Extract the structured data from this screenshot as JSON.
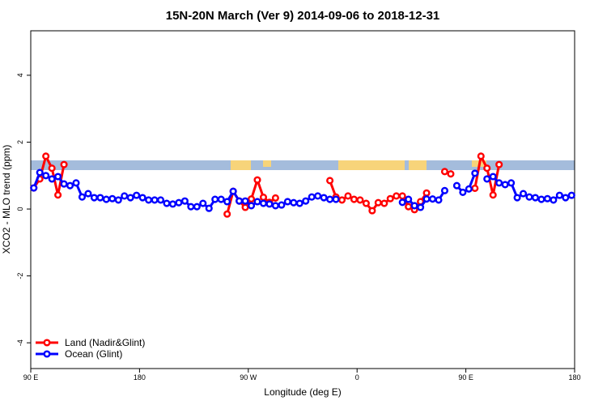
{
  "chart_data": {
    "type": "line",
    "title": "15N-20N March (Ver 9)   2014-09-06 to 2018-12-31",
    "xlabel": "Longitude (deg E)",
    "ylabel": "XCO2 - MLO trend (ppm)",
    "xlim": [
      90,
      540
    ],
    "ylim": [
      -4.77,
      5.33
    ],
    "xticks": [
      {
        "value": 90,
        "label": "90 E"
      },
      180,
      {
        "value": 270,
        "label": "90 W"
      },
      {
        "value": 360,
        "label": "0"
      },
      {
        "value": 450,
        "label": "90 E"
      },
      {
        "value": 540,
        "label": "180"
      }
    ],
    "yticks": [
      -4,
      -2,
      0,
      2,
      4
    ],
    "legend": "bottom-left",
    "x": [
      92.5,
      97.5,
      102.5,
      107.5,
      112.5,
      117.5,
      122.5,
      127.5,
      132.5,
      137.5,
      142.5,
      147.5,
      152.5,
      157.5,
      162.5,
      167.5,
      172.5,
      177.5,
      182.5,
      187.5,
      192.5,
      197.5,
      202.5,
      207.5,
      212.5,
      217.5,
      222.5,
      227.5,
      232.5,
      237.5,
      242.5,
      247.5,
      252.5,
      257.5,
      262.5,
      267.5,
      272.5,
      277.5,
      282.5,
      287.5,
      292.5,
      297.5,
      302.5,
      307.5,
      312.5,
      317.5,
      322.5,
      327.5,
      332.5,
      337.5,
      342.5,
      347.5,
      352.5,
      357.5,
      362.5,
      367.5,
      372.5,
      377.5,
      382.5,
      387.5,
      392.5,
      397.5,
      402.5,
      407.5,
      412.5,
      417.5,
      422.5,
      427.5,
      432.5,
      437.5,
      442.5,
      447.5,
      452.5,
      457.5,
      462.5,
      467.5,
      472.5,
      477.5,
      482.5,
      487.5,
      492.5,
      497.5,
      502.5,
      507.5,
      512.5,
      517.5,
      522.5,
      527.5,
      532.5,
      537.5
    ],
    "series": [
      {
        "name": "Land (Nadir&Glint)",
        "color": "#ff0000",
        "values": [
          0.63,
          0.9,
          1.58,
          1.22,
          0.42,
          1.33,
          null,
          null,
          null,
          null,
          null,
          null,
          null,
          null,
          null,
          null,
          null,
          null,
          null,
          null,
          null,
          null,
          null,
          null,
          null,
          null,
          null,
          null,
          null,
          null,
          null,
          null,
          -0.15,
          0.53,
          0.24,
          0.05,
          0.3,
          0.87,
          0.35,
          0.2,
          0.33,
          null,
          null,
          null,
          null,
          null,
          null,
          null,
          null,
          0.85,
          0.36,
          0.27,
          0.39,
          0.29,
          0.27,
          0.17,
          -0.05,
          0.19,
          0.17,
          0.31,
          0.39,
          0.39,
          0.07,
          -0.02,
          0.22,
          0.48,
          null,
          null,
          1.12,
          1.05,
          null,
          null,
          null,
          0.62,
          1.58,
          1.22,
          0.42,
          1.33,
          null,
          null,
          null,
          null,
          null,
          null,
          null,
          null,
          null,
          null,
          null,
          null
        ]
      },
      {
        "name": "Ocean (Glint)",
        "color": "#0000ff",
        "values": [
          0.63,
          1.09,
          1.0,
          0.9,
          0.97,
          0.75,
          0.7,
          0.78,
          0.36,
          0.46,
          0.34,
          0.34,
          0.29,
          0.31,
          0.27,
          0.39,
          0.34,
          0.41,
          0.34,
          0.27,
          0.27,
          0.27,
          0.17,
          0.15,
          0.19,
          0.24,
          0.07,
          0.07,
          0.17,
          0.02,
          0.29,
          0.29,
          0.22,
          0.53,
          0.24,
          0.24,
          0.1,
          0.22,
          0.17,
          0.15,
          0.1,
          0.12,
          0.22,
          0.19,
          0.17,
          0.24,
          0.36,
          0.39,
          0.34,
          0.29,
          0.29,
          null,
          null,
          null,
          null,
          null,
          null,
          null,
          null,
          null,
          null,
          0.2,
          0.29,
          0.1,
          0.05,
          0.3,
          0.3,
          0.27,
          0.55,
          null,
          0.7,
          0.5,
          0.6,
          1.07,
          null,
          0.9,
          0.97,
          0.78,
          0.73,
          0.78,
          0.34,
          0.46,
          0.36,
          0.34,
          0.29,
          0.31,
          0.27,
          0.41,
          0.34,
          0.41
        ]
      }
    ]
  }
}
